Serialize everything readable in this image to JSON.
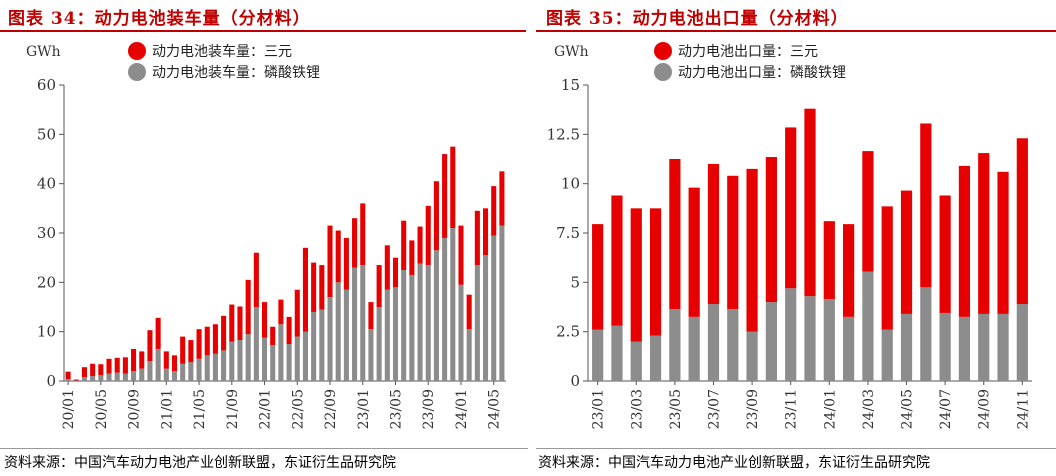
{
  "left": {
    "title": "图表 34：动力电池装车量（分材料）",
    "unit": "GWh",
    "source": "资料来源：中国汽车动力电池产业创新联盟，东证衍生品研究院",
    "legend": [
      {
        "label": "动力电池装车量：三元",
        "color": "#e60000"
      },
      {
        "label": "动力电池装车量：磷酸铁锂",
        "color": "#8c8c8c"
      }
    ]
  },
  "right": {
    "title": "图表 35：动力电池出口量（分材料）",
    "unit": "GWh",
    "source": "资料来源：中国汽车动力电池产业创新联盟，东证衍生品研究院",
    "legend": [
      {
        "label": "动力电池出口量：三元",
        "color": "#e60000"
      },
      {
        "label": "动力电池出口量：磷酸铁锂",
        "color": "#8c8c8c"
      }
    ]
  },
  "chart_data": [
    {
      "type": "bar",
      "stacked": true,
      "title": "图表 34：动力电池装车量（分材料）",
      "ylabel": "GWh",
      "ylim": [
        0,
        60
      ],
      "yticks": [
        0,
        10,
        20,
        30,
        40,
        50,
        60
      ],
      "tick_labels": [
        "20/01",
        "20/05",
        "20/09",
        "21/01",
        "21/05",
        "21/09",
        "22/01",
        "22/05",
        "22/09",
        "23/01",
        "23/05",
        "23/09",
        "24/01",
        "24/05"
      ],
      "categories": [
        "20/01",
        "20/02",
        "20/03",
        "20/04",
        "20/05",
        "20/06",
        "20/07",
        "20/08",
        "20/09",
        "20/10",
        "20/11",
        "20/12",
        "21/01",
        "21/02",
        "21/03",
        "21/04",
        "21/05",
        "21/06",
        "21/07",
        "21/08",
        "21/09",
        "21/10",
        "21/11",
        "21/12",
        "22/01",
        "22/02",
        "22/03",
        "22/04",
        "22/05",
        "22/06",
        "22/07",
        "22/08",
        "22/09",
        "22/10",
        "22/11",
        "22/12",
        "23/01",
        "23/02",
        "23/03",
        "23/04",
        "23/05",
        "23/06",
        "23/07",
        "23/08",
        "23/09",
        "23/10",
        "23/11",
        "23/12",
        "24/01",
        "24/02",
        "24/03",
        "24/04",
        "24/05",
        "24/06"
      ],
      "series": [
        {
          "name": "动力电池装车量：磷酸铁锂",
          "color": "#8c8c8c",
          "values": [
            0.4,
            0.1,
            0.8,
            1.0,
            1.2,
            1.5,
            1.7,
            1.5,
            2.0,
            2.5,
            4.0,
            6.5,
            2.5,
            2.0,
            3.5,
            3.8,
            4.5,
            5.2,
            5.5,
            6.2,
            8.0,
            8.3,
            9.5,
            15.0,
            8.8,
            7.3,
            11.5,
            7.5,
            9.0,
            10.0,
            14.0,
            14.5,
            17.0,
            20.0,
            18.5,
            23.0,
            23.5,
            10.5,
            15.0,
            18.5,
            19.0,
            22.5,
            21.5,
            23.8,
            23.5,
            26.5,
            29.0,
            31.0,
            19.5,
            10.5,
            23.5,
            25.5,
            29.5,
            31.5
          ]
        },
        {
          "name": "动力电池装车量：三元",
          "color": "#e60000",
          "values": [
            1.5,
            0.2,
            2.0,
            2.5,
            2.2,
            3.0,
            3.0,
            3.3,
            4.5,
            3.5,
            6.3,
            6.3,
            3.5,
            3.2,
            5.5,
            4.5,
            6.0,
            5.8,
            6.0,
            7.0,
            7.5,
            6.8,
            11.0,
            11.0,
            7.2,
            3.7,
            5.0,
            5.5,
            9.5,
            17.0,
            10.0,
            9.0,
            14.5,
            10.5,
            10.5,
            10.0,
            12.5,
            5.5,
            8.5,
            9.0,
            6.0,
            10.0,
            7.0,
            7.5,
            12.0,
            14.0,
            17.0,
            16.5,
            12.0,
            7.0,
            11.0,
            9.5,
            10.0,
            11.0
          ]
        }
      ]
    },
    {
      "type": "bar",
      "stacked": true,
      "title": "图表 35：动力电池出口量（分材料）",
      "ylabel": "GWh",
      "ylim": [
        0,
        15
      ],
      "yticks": [
        0,
        2.5,
        5,
        7.5,
        10,
        12.5,
        15
      ],
      "ytick_labels": [
        "0",
        "2.5",
        "5",
        "7.5",
        "10",
        "12.5",
        "15"
      ],
      "tick_labels": [
        "23/01",
        "23/03",
        "23/05",
        "23/07",
        "23/09",
        "23/11",
        "24/01",
        "24/03",
        "24/05",
        "24/07",
        "24/09",
        "24/11"
      ],
      "categories": [
        "23/01",
        "23/02",
        "23/03",
        "23/04",
        "23/05",
        "23/06",
        "23/07",
        "23/08",
        "23/09",
        "23/10",
        "23/11",
        "23/12",
        "24/01",
        "24/02",
        "24/03",
        "24/04",
        "24/05",
        "24/06",
        "24/07",
        "24/08",
        "24/09",
        "24/10",
        "24/11"
      ],
      "series": [
        {
          "name": "动力电池出口量：磷酸铁锂",
          "color": "#8c8c8c",
          "values": [
            2.6,
            2.8,
            2.0,
            2.3,
            3.65,
            3.25,
            3.9,
            3.65,
            2.5,
            4.0,
            4.7,
            4.3,
            4.15,
            3.25,
            5.55,
            2.6,
            3.4,
            4.75,
            3.45,
            3.25,
            3.4,
            3.4,
            3.9
          ]
        },
        {
          "name": "动力电池出口量：三元",
          "color": "#e60000",
          "values": [
            5.35,
            6.6,
            6.75,
            6.45,
            7.6,
            6.55,
            7.1,
            6.75,
            8.25,
            7.35,
            8.15,
            9.5,
            3.95,
            4.7,
            6.1,
            6.25,
            6.25,
            8.3,
            5.95,
            7.65,
            8.15,
            7.2,
            8.4
          ]
        }
      ]
    }
  ]
}
